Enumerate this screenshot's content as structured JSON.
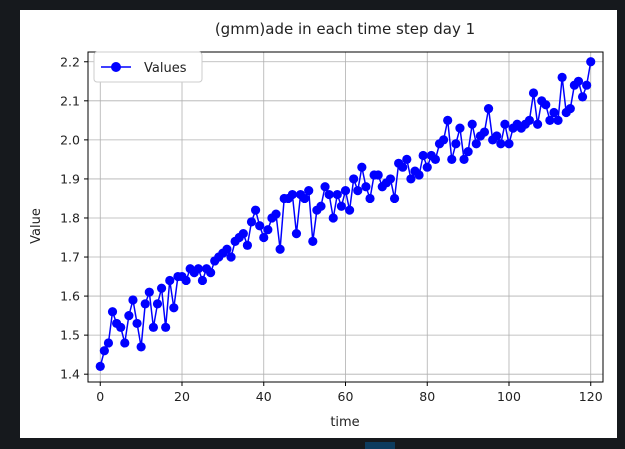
{
  "chart_data": {
    "type": "line",
    "title": "(gmm)ade in each time step day 1",
    "xlabel": "time",
    "ylabel": "Value",
    "xlim": [
      -3,
      123
    ],
    "ylim": [
      1.38,
      2.225
    ],
    "xticks": [
      0,
      20,
      40,
      60,
      80,
      100,
      120
    ],
    "yticks": [
      1.4,
      1.5,
      1.6,
      1.7,
      1.8,
      1.9,
      2.0,
      2.1,
      2.2
    ],
    "xtick_labels": [
      "0",
      "20",
      "40",
      "60",
      "80",
      "100",
      "120"
    ],
    "ytick_labels": [
      "1.4",
      "1.5",
      "1.6",
      "1.7",
      "1.8",
      "1.9",
      "2.0",
      "2.1",
      "2.2"
    ],
    "grid": true,
    "legend": "top-left",
    "series": [
      {
        "name": "Values",
        "color": "#0000ff",
        "marker": "circle",
        "x": [
          0,
          1,
          2,
          3,
          4,
          5,
          6,
          7,
          8,
          9,
          10,
          11,
          12,
          13,
          14,
          15,
          16,
          17,
          18,
          19,
          20,
          21,
          22,
          23,
          24,
          25,
          26,
          27,
          28,
          29,
          30,
          31,
          32,
          33,
          34,
          35,
          36,
          37,
          38,
          39,
          40,
          41,
          42,
          43,
          44,
          45,
          46,
          47,
          48,
          49,
          50,
          51,
          52,
          53,
          54,
          55,
          56,
          57,
          58,
          59,
          60,
          61,
          62,
          63,
          64,
          65,
          66,
          67,
          68,
          69,
          70,
          71,
          72,
          73,
          74,
          75,
          76,
          77,
          78,
          79,
          80,
          81,
          82,
          83,
          84,
          85,
          86,
          87,
          88,
          89,
          90,
          91,
          92,
          93,
          94,
          95,
          96,
          97,
          98,
          99,
          100,
          101,
          102,
          103,
          104,
          105,
          106,
          107,
          108,
          109,
          110,
          111,
          112,
          113,
          114,
          115,
          116,
          117,
          118,
          119,
          120
        ],
        "values": [
          1.42,
          1.46,
          1.48,
          1.56,
          1.53,
          1.52,
          1.48,
          1.55,
          1.59,
          1.53,
          1.47,
          1.58,
          1.61,
          1.52,
          1.58,
          1.62,
          1.52,
          1.64,
          1.57,
          1.65,
          1.65,
          1.64,
          1.67,
          1.66,
          1.67,
          1.64,
          1.67,
          1.66,
          1.69,
          1.7,
          1.71,
          1.72,
          1.7,
          1.74,
          1.75,
          1.76,
          1.73,
          1.79,
          1.82,
          1.78,
          1.75,
          1.77,
          1.8,
          1.81,
          1.72,
          1.85,
          1.85,
          1.86,
          1.76,
          1.86,
          1.85,
          1.87,
          1.74,
          1.82,
          1.83,
          1.88,
          1.86,
          1.8,
          1.86,
          1.83,
          1.87,
          1.82,
          1.9,
          1.87,
          1.93,
          1.88,
          1.85,
          1.91,
          1.91,
          1.88,
          1.89,
          1.9,
          1.85,
          1.94,
          1.93,
          1.95,
          1.9,
          1.92,
          1.91,
          1.96,
          1.93,
          1.96,
          1.95,
          1.99,
          2.0,
          2.05,
          1.95,
          1.99,
          2.03,
          1.95,
          1.97,
          2.04,
          1.99,
          2.01,
          2.02,
          2.08,
          2.0,
          2.01,
          1.99,
          2.04,
          1.99,
          2.03,
          2.04,
          2.03,
          2.04,
          2.05,
          2.12,
          2.04,
          2.1,
          2.09,
          2.05,
          2.07,
          2.05,
          2.16,
          2.07,
          2.08,
          2.14,
          2.15,
          2.11,
          2.14,
          2.2
        ]
      }
    ]
  }
}
